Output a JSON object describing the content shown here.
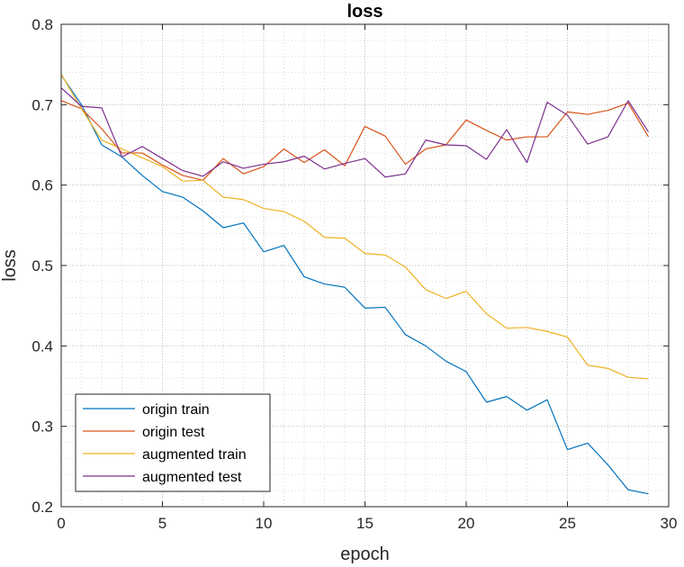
{
  "chart_data": {
    "type": "line",
    "title": "loss",
    "xlabel": "epoch",
    "ylabel": "loss",
    "xlim": [
      0,
      30
    ],
    "ylim": [
      0.2,
      0.8
    ],
    "xticks": [
      0,
      5,
      10,
      15,
      20,
      25,
      30
    ],
    "yticks": [
      0.2,
      0.3,
      0.4,
      0.5,
      0.6,
      0.7,
      0.8
    ],
    "xtick_labels": [
      "0",
      "5",
      "10",
      "15",
      "20",
      "25",
      "30"
    ],
    "ytick_labels": [
      "0.2",
      "0.3",
      "0.4",
      "0.5",
      "0.6",
      "0.7",
      "0.8"
    ],
    "grid": true,
    "minor_grid": true,
    "legend_position": "bottom-left",
    "x": [
      0,
      1,
      2,
      3,
      4,
      5,
      6,
      7,
      8,
      9,
      10,
      11,
      12,
      13,
      14,
      15,
      16,
      17,
      18,
      19,
      20,
      21,
      22,
      23,
      24,
      25,
      26,
      27,
      28,
      29
    ],
    "series": [
      {
        "name": "origin train",
        "color": "#0072BD",
        "values": [
          0.737,
          0.7,
          0.65,
          0.635,
          0.612,
          0.592,
          0.585,
          0.568,
          0.547,
          0.553,
          0.517,
          0.525,
          0.486,
          0.477,
          0.473,
          0.447,
          0.448,
          0.414,
          0.4,
          0.381,
          0.368,
          0.33,
          0.337,
          0.32,
          0.333,
          0.271,
          0.279,
          0.252,
          0.221,
          0.216
        ]
      },
      {
        "name": "origin test",
        "color": "#D95319",
        "values": [
          0.705,
          0.695,
          0.67,
          0.64,
          0.64,
          0.625,
          0.612,
          0.606,
          0.633,
          0.614,
          0.623,
          0.645,
          0.628,
          0.644,
          0.624,
          0.673,
          0.661,
          0.626,
          0.645,
          0.65,
          0.681,
          0.668,
          0.656,
          0.66,
          0.66,
          0.691,
          0.688,
          0.693,
          0.702,
          0.66
        ]
      },
      {
        "name": "augmented train",
        "color": "#EDB120",
        "values": [
          0.738,
          0.695,
          0.656,
          0.645,
          0.634,
          0.623,
          0.605,
          0.606,
          0.585,
          0.582,
          0.571,
          0.567,
          0.555,
          0.535,
          0.534,
          0.515,
          0.513,
          0.498,
          0.47,
          0.459,
          0.468,
          0.44,
          0.422,
          0.423,
          0.418,
          0.411,
          0.376,
          0.372,
          0.361,
          0.359
        ]
      },
      {
        "name": "augmented test",
        "color": "#7E2F8E",
        "values": [
          0.721,
          0.698,
          0.696,
          0.635,
          0.648,
          0.633,
          0.618,
          0.611,
          0.629,
          0.621,
          0.626,
          0.629,
          0.636,
          0.62,
          0.627,
          0.633,
          0.61,
          0.614,
          0.656,
          0.65,
          0.649,
          0.632,
          0.669,
          0.628,
          0.703,
          0.687,
          0.651,
          0.66,
          0.705,
          0.666
        ]
      }
    ]
  }
}
